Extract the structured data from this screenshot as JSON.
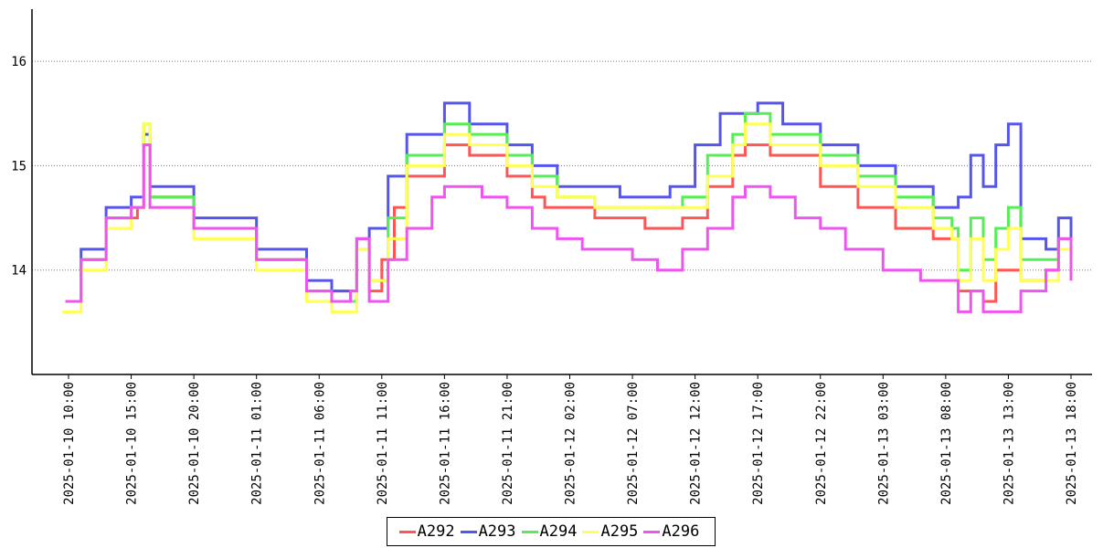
{
  "chart_data": {
    "type": "line",
    "title": "",
    "xlabel": "",
    "ylabel": "",
    "ylim": [
      13,
      16.5
    ],
    "y_ticks": [
      14,
      15,
      16
    ],
    "grid": "horizontal dotted",
    "legend_position": "bottom-center",
    "x_start": "2025-01-10 09:30",
    "x_end": "2025-01-13 18:15",
    "x_tick_labels": [
      "2025-01-10 10:00",
      "2025-01-10 15:00",
      "2025-01-10 20:00",
      "2025-01-11 01:00",
      "2025-01-11 06:00",
      "2025-01-11 11:00",
      "2025-01-11 16:00",
      "2025-01-11 21:00",
      "2025-01-12 02:00",
      "2025-01-12 07:00",
      "2025-01-12 12:00",
      "2025-01-12 17:00",
      "2025-01-12 22:00",
      "2025-01-13 03:00",
      "2025-01-13 08:00",
      "2025-01-13 13:00",
      "2025-01-13 18:00"
    ],
    "series": [
      {
        "name": "A292",
        "color": "#ff5555",
        "points": [
          [
            "2025-01-10 09:45",
            13.7
          ],
          [
            "2025-01-10 11:00",
            14.1
          ],
          [
            "2025-01-10 13:00",
            14.5
          ],
          [
            "2025-01-10 15:30",
            14.6
          ],
          [
            "2025-01-10 16:00",
            15.2
          ],
          [
            "2025-01-10 16:30",
            14.7
          ],
          [
            "2025-01-10 20:00",
            14.4
          ],
          [
            "2025-01-11 01:00",
            14.1
          ],
          [
            "2025-01-11 05:00",
            13.8
          ],
          [
            "2025-01-11 07:00",
            13.8
          ],
          [
            "2025-01-11 08:30",
            13.7
          ],
          [
            "2025-01-11 09:00",
            14.3
          ],
          [
            "2025-01-11 10:00",
            13.8
          ],
          [
            "2025-01-11 11:00",
            14.1
          ],
          [
            "2025-01-11 12:00",
            14.6
          ],
          [
            "2025-01-11 13:00",
            14.9
          ],
          [
            "2025-01-11 16:00",
            15.2
          ],
          [
            "2025-01-11 18:00",
            15.1
          ],
          [
            "2025-01-11 21:00",
            14.9
          ],
          [
            "2025-01-11 23:00",
            14.7
          ],
          [
            "2025-01-12 00:00",
            14.6
          ],
          [
            "2025-01-12 02:00",
            14.6
          ],
          [
            "2025-01-12 04:00",
            14.5
          ],
          [
            "2025-01-12 08:00",
            14.4
          ],
          [
            "2025-01-12 11:00",
            14.5
          ],
          [
            "2025-01-12 13:00",
            14.8
          ],
          [
            "2025-01-12 15:00",
            15.1
          ],
          [
            "2025-01-12 16:00",
            15.2
          ],
          [
            "2025-01-12 18:00",
            15.1
          ],
          [
            "2025-01-12 22:00",
            14.8
          ],
          [
            "2025-01-13 01:00",
            14.6
          ],
          [
            "2025-01-13 04:00",
            14.4
          ],
          [
            "2025-01-13 07:00",
            14.3
          ],
          [
            "2025-01-13 08:30",
            14.3
          ],
          [
            "2025-01-13 09:00",
            13.8
          ],
          [
            "2025-01-13 11:00",
            13.7
          ],
          [
            "2025-01-13 12:00",
            14.0
          ],
          [
            "2025-01-13 14:00",
            13.9
          ],
          [
            "2025-01-13 16:00",
            14.0
          ],
          [
            "2025-01-13 17:00",
            14.3
          ],
          [
            "2025-01-13 18:00",
            13.9
          ]
        ]
      },
      {
        "name": "A293",
        "color": "#5555ee",
        "points": [
          [
            "2025-01-10 09:45",
            13.7
          ],
          [
            "2025-01-10 11:00",
            14.2
          ],
          [
            "2025-01-10 13:00",
            14.6
          ],
          [
            "2025-01-10 15:00",
            14.7
          ],
          [
            "2025-01-10 16:00",
            15.3
          ],
          [
            "2025-01-10 16:30",
            14.8
          ],
          [
            "2025-01-10 20:00",
            14.5
          ],
          [
            "2025-01-11 01:00",
            14.2
          ],
          [
            "2025-01-11 05:00",
            13.9
          ],
          [
            "2025-01-11 07:00",
            13.8
          ],
          [
            "2025-01-11 08:30",
            13.8
          ],
          [
            "2025-01-11 09:00",
            14.3
          ],
          [
            "2025-01-11 10:00",
            14.4
          ],
          [
            "2025-01-11 11:30",
            14.9
          ],
          [
            "2025-01-11 13:00",
            15.3
          ],
          [
            "2025-01-11 16:00",
            15.6
          ],
          [
            "2025-01-11 18:00",
            15.4
          ],
          [
            "2025-01-11 21:00",
            15.2
          ],
          [
            "2025-01-11 23:00",
            15.0
          ],
          [
            "2025-01-12 01:00",
            14.8
          ],
          [
            "2025-01-12 06:00",
            14.7
          ],
          [
            "2025-01-12 10:00",
            14.8
          ],
          [
            "2025-01-12 12:00",
            15.2
          ],
          [
            "2025-01-12 14:00",
            15.5
          ],
          [
            "2025-01-12 17:00",
            15.6
          ],
          [
            "2025-01-12 19:00",
            15.4
          ],
          [
            "2025-01-12 22:00",
            15.2
          ],
          [
            "2025-01-13 01:00",
            15.0
          ],
          [
            "2025-01-13 04:00",
            14.8
          ],
          [
            "2025-01-13 07:00",
            14.6
          ],
          [
            "2025-01-13 08:00",
            14.6
          ],
          [
            "2025-01-13 09:00",
            14.7
          ],
          [
            "2025-01-13 10:00",
            15.1
          ],
          [
            "2025-01-13 11:00",
            14.8
          ],
          [
            "2025-01-13 12:00",
            15.2
          ],
          [
            "2025-01-13 13:00",
            15.4
          ],
          [
            "2025-01-13 14:00",
            14.3
          ],
          [
            "2025-01-13 16:00",
            14.2
          ],
          [
            "2025-01-13 17:00",
            14.5
          ],
          [
            "2025-01-13 18:00",
            14.2
          ]
        ]
      },
      {
        "name": "A294",
        "color": "#55ee55",
        "points": [
          [
            "2025-01-10 09:45",
            13.7
          ],
          [
            "2025-01-10 11:00",
            14.1
          ],
          [
            "2025-01-10 13:00",
            14.5
          ],
          [
            "2025-01-10 15:00",
            14.6
          ],
          [
            "2025-01-10 16:00",
            15.4
          ],
          [
            "2025-01-10 16:30",
            14.7
          ],
          [
            "2025-01-10 20:00",
            14.4
          ],
          [
            "2025-01-11 01:00",
            14.1
          ],
          [
            "2025-01-11 05:00",
            13.7
          ],
          [
            "2025-01-11 07:00",
            13.7
          ],
          [
            "2025-01-11 08:30",
            13.7
          ],
          [
            "2025-01-11 09:00",
            14.2
          ],
          [
            "2025-01-11 10:00",
            13.9
          ],
          [
            "2025-01-11 11:30",
            14.5
          ],
          [
            "2025-01-11 13:00",
            15.1
          ],
          [
            "2025-01-11 16:00",
            15.4
          ],
          [
            "2025-01-11 18:00",
            15.3
          ],
          [
            "2025-01-11 21:00",
            15.1
          ],
          [
            "2025-01-11 23:00",
            14.9
          ],
          [
            "2025-01-12 01:00",
            14.7
          ],
          [
            "2025-01-12 04:00",
            14.6
          ],
          [
            "2025-01-12 09:00",
            14.6
          ],
          [
            "2025-01-12 11:00",
            14.7
          ],
          [
            "2025-01-12 13:00",
            15.1
          ],
          [
            "2025-01-12 15:00",
            15.3
          ],
          [
            "2025-01-12 16:00",
            15.5
          ],
          [
            "2025-01-12 18:00",
            15.3
          ],
          [
            "2025-01-12 22:00",
            15.1
          ],
          [
            "2025-01-13 01:00",
            14.9
          ],
          [
            "2025-01-13 04:00",
            14.7
          ],
          [
            "2025-01-13 07:00",
            14.5
          ],
          [
            "2025-01-13 08:30",
            14.4
          ],
          [
            "2025-01-13 09:00",
            14.0
          ],
          [
            "2025-01-13 10:00",
            14.5
          ],
          [
            "2025-01-13 11:00",
            14.1
          ],
          [
            "2025-01-13 12:00",
            14.4
          ],
          [
            "2025-01-13 13:00",
            14.6
          ],
          [
            "2025-01-13 14:00",
            14.1
          ],
          [
            "2025-01-13 16:00",
            14.1
          ],
          [
            "2025-01-13 17:00",
            14.3
          ],
          [
            "2025-01-13 18:00",
            14.0
          ]
        ]
      },
      {
        "name": "A295",
        "color": "#ffff55",
        "points": [
          [
            "2025-01-10 09:30",
            13.6
          ],
          [
            "2025-01-10 11:00",
            14.0
          ],
          [
            "2025-01-10 13:00",
            14.4
          ],
          [
            "2025-01-10 15:00",
            14.6
          ],
          [
            "2025-01-10 16:00",
            15.4
          ],
          [
            "2025-01-10 16:30",
            14.6
          ],
          [
            "2025-01-10 20:00",
            14.3
          ],
          [
            "2025-01-11 01:00",
            14.0
          ],
          [
            "2025-01-11 05:00",
            13.7
          ],
          [
            "2025-01-11 07:00",
            13.6
          ],
          [
            "2025-01-11 08:30",
            13.6
          ],
          [
            "2025-01-11 09:00",
            14.2
          ],
          [
            "2025-01-11 10:00",
            13.9
          ],
          [
            "2025-01-11 11:30",
            14.3
          ],
          [
            "2025-01-11 13:00",
            15.0
          ],
          [
            "2025-01-11 16:00",
            15.3
          ],
          [
            "2025-01-11 18:00",
            15.2
          ],
          [
            "2025-01-11 21:00",
            15.0
          ],
          [
            "2025-01-11 23:00",
            14.8
          ],
          [
            "2025-01-12 01:00",
            14.7
          ],
          [
            "2025-01-12 04:00",
            14.6
          ],
          [
            "2025-01-12 09:00",
            14.6
          ],
          [
            "2025-01-12 11:00",
            14.6
          ],
          [
            "2025-01-12 13:00",
            14.9
          ],
          [
            "2025-01-12 15:00",
            15.2
          ],
          [
            "2025-01-12 16:00",
            15.4
          ],
          [
            "2025-01-12 18:00",
            15.2
          ],
          [
            "2025-01-12 22:00",
            15.0
          ],
          [
            "2025-01-13 01:00",
            14.8
          ],
          [
            "2025-01-13 04:00",
            14.6
          ],
          [
            "2025-01-13 07:00",
            14.4
          ],
          [
            "2025-01-13 08:30",
            14.3
          ],
          [
            "2025-01-13 09:00",
            13.9
          ],
          [
            "2025-01-13 10:00",
            14.3
          ],
          [
            "2025-01-13 11:00",
            13.9
          ],
          [
            "2025-01-13 12:00",
            14.2
          ],
          [
            "2025-01-13 13:00",
            14.4
          ],
          [
            "2025-01-13 14:00",
            13.9
          ],
          [
            "2025-01-13 16:00",
            13.9
          ],
          [
            "2025-01-13 17:00",
            14.2
          ],
          [
            "2025-01-13 18:00",
            13.9
          ]
        ]
      },
      {
        "name": "A296",
        "color": "#ee55ee",
        "points": [
          [
            "2025-01-10 09:45",
            13.7
          ],
          [
            "2025-01-10 11:00",
            14.1
          ],
          [
            "2025-01-10 13:00",
            14.5
          ],
          [
            "2025-01-10 15:00",
            14.6
          ],
          [
            "2025-01-10 16:00",
            15.2
          ],
          [
            "2025-01-10 16:30",
            14.6
          ],
          [
            "2025-01-10 20:00",
            14.4
          ],
          [
            "2025-01-11 01:00",
            14.1
          ],
          [
            "2025-01-11 05:00",
            13.8
          ],
          [
            "2025-01-11 07:00",
            13.7
          ],
          [
            "2025-01-11 08:30",
            13.8
          ],
          [
            "2025-01-11 09:00",
            14.3
          ],
          [
            "2025-01-11 10:00",
            13.7
          ],
          [
            "2025-01-11 11:30",
            14.1
          ],
          [
            "2025-01-11 13:00",
            14.4
          ],
          [
            "2025-01-11 15:00",
            14.7
          ],
          [
            "2025-01-11 16:00",
            14.8
          ],
          [
            "2025-01-11 19:00",
            14.7
          ],
          [
            "2025-01-11 21:00",
            14.6
          ],
          [
            "2025-01-11 23:00",
            14.4
          ],
          [
            "2025-01-12 01:00",
            14.3
          ],
          [
            "2025-01-12 03:00",
            14.2
          ],
          [
            "2025-01-12 05:00",
            14.2
          ],
          [
            "2025-01-12 07:00",
            14.1
          ],
          [
            "2025-01-12 09:00",
            14.0
          ],
          [
            "2025-01-12 11:00",
            14.2
          ],
          [
            "2025-01-12 13:00",
            14.4
          ],
          [
            "2025-01-12 15:00",
            14.7
          ],
          [
            "2025-01-12 16:00",
            14.8
          ],
          [
            "2025-01-12 18:00",
            14.7
          ],
          [
            "2025-01-12 20:00",
            14.5
          ],
          [
            "2025-01-12 22:00",
            14.4
          ],
          [
            "2025-01-13 00:00",
            14.2
          ],
          [
            "2025-01-13 03:00",
            14.0
          ],
          [
            "2025-01-13 06:00",
            13.9
          ],
          [
            "2025-01-13 08:00",
            13.9
          ],
          [
            "2025-01-13 09:00",
            13.6
          ],
          [
            "2025-01-13 10:00",
            13.8
          ],
          [
            "2025-01-13 11:00",
            13.6
          ],
          [
            "2025-01-13 13:00",
            13.6
          ],
          [
            "2025-01-13 14:00",
            13.8
          ],
          [
            "2025-01-13 16:00",
            14.0
          ],
          [
            "2025-01-13 17:00",
            14.3
          ],
          [
            "2025-01-13 18:00",
            13.9
          ]
        ]
      }
    ]
  }
}
